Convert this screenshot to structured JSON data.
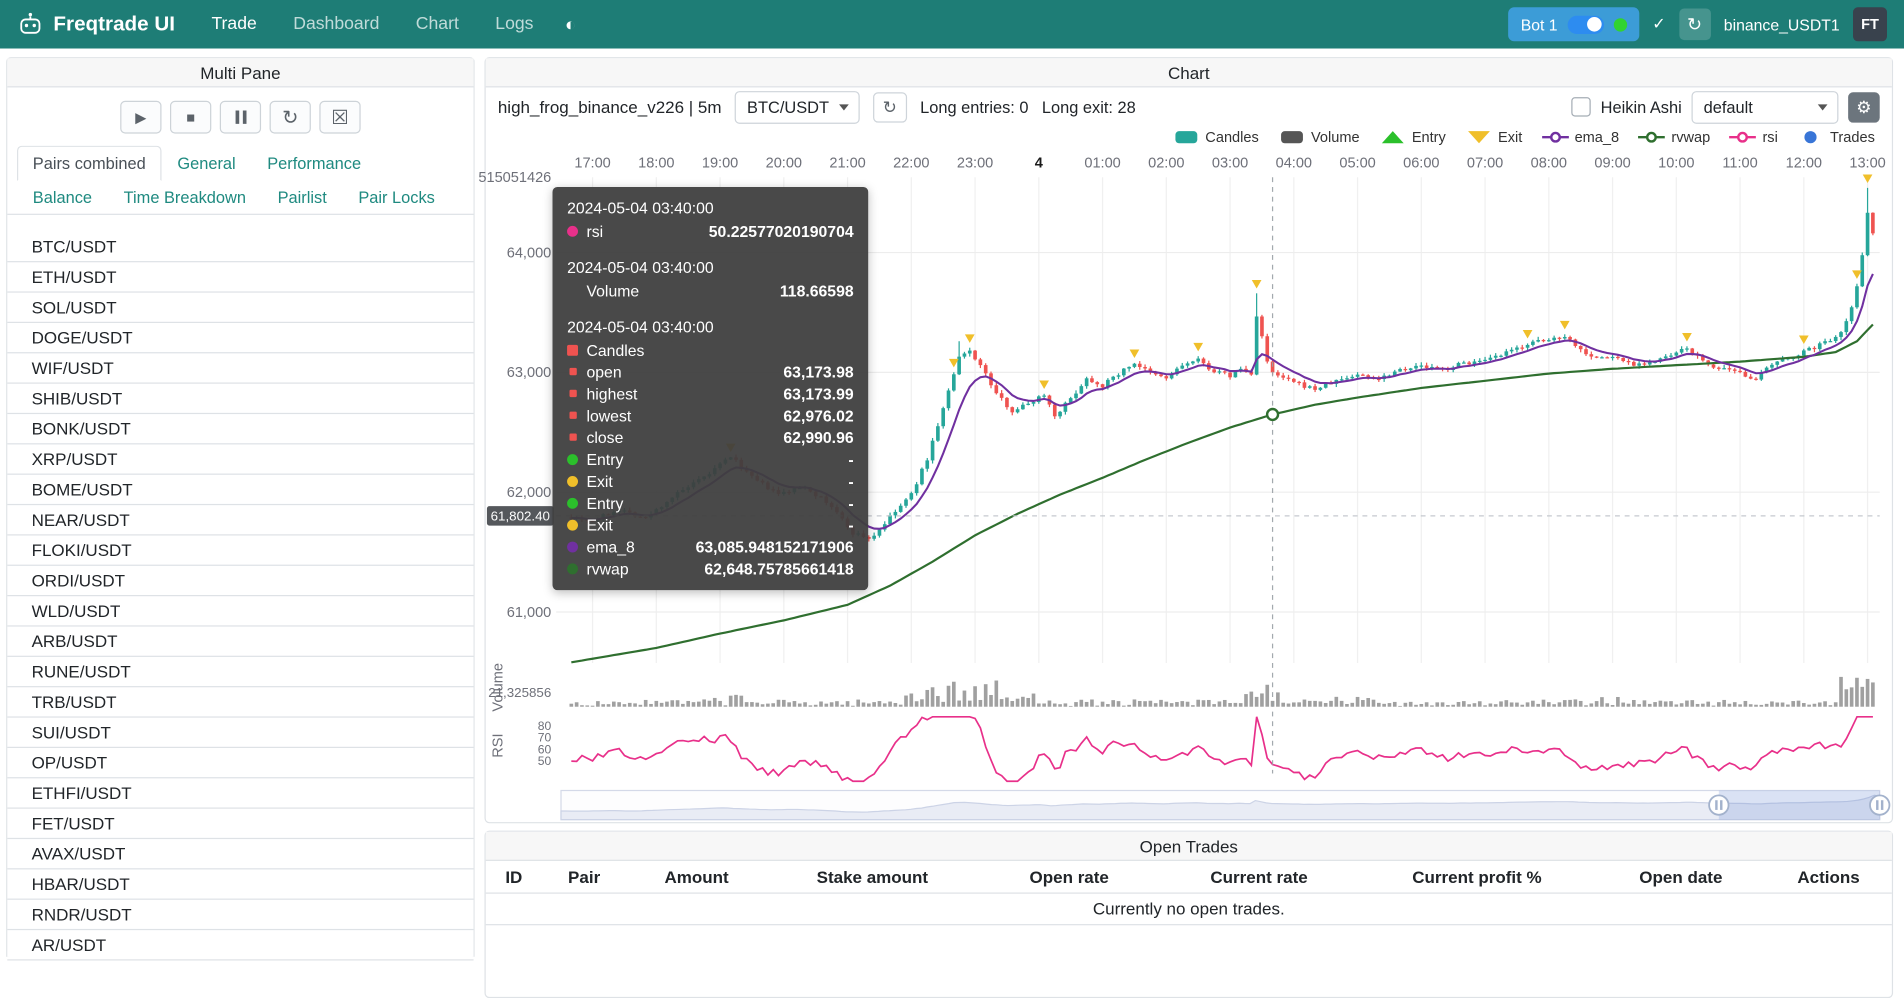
{
  "navbar": {
    "brand": "Freqtrade UI",
    "links": [
      {
        "label": "Trade",
        "active": true
      },
      {
        "label": "Dashboard",
        "active": false
      },
      {
        "label": "Chart",
        "active": false
      },
      {
        "label": "Logs",
        "active": false
      }
    ],
    "theme_icon": "◐",
    "bot_label": "Bot 1",
    "check_icon": "✓",
    "refresh_icon": "↻",
    "bot_name": "binance_USDT1",
    "avatar": "FT",
    "colors": {
      "navbar_bg": "#1e7d76",
      "badge_bg": "#3c9cd7",
      "toggle_on": "#2d8cf0",
      "online_dot": "#31d331"
    }
  },
  "multi_pane": {
    "title": "Multi Pane",
    "controls": [
      {
        "name": "start-bot",
        "glyph": "▶"
      },
      {
        "name": "stop-bot",
        "glyph": "■"
      },
      {
        "name": "pause-bot",
        "glyph": "pause"
      },
      {
        "name": "reload-config",
        "glyph": "↻"
      },
      {
        "name": "cancel-open-orders",
        "glyph": "☒"
      }
    ],
    "tabs": [
      {
        "label": "Pairs combined",
        "active": true
      },
      {
        "label": "General",
        "active": false
      },
      {
        "label": "Performance",
        "active": false
      },
      {
        "label": "Balance",
        "active": false
      },
      {
        "label": "Time Breakdown",
        "active": false
      },
      {
        "label": "Pairlist",
        "active": false
      },
      {
        "label": "Pair Locks",
        "active": false
      }
    ],
    "pairs": [
      "BTC/USDT",
      "ETH/USDT",
      "SOL/USDT",
      "DOGE/USDT",
      "WIF/USDT",
      "SHIB/USDT",
      "BONK/USDT",
      "XRP/USDT",
      "BOME/USDT",
      "NEAR/USDT",
      "FLOKI/USDT",
      "ORDI/USDT",
      "WLD/USDT",
      "ARB/USDT",
      "RUNE/USDT",
      "TRB/USDT",
      "SUI/USDT",
      "OP/USDT",
      "ETHFI/USDT",
      "FET/USDT",
      "AVAX/USDT",
      "HBAR/USDT",
      "RNDR/USDT",
      "AR/USDT"
    ]
  },
  "chart_panel": {
    "title": "Chart",
    "strategy_label": "high_frog_binance_v226 | 5m",
    "pair_select_value": "BTC/USDT",
    "refresh_icon": "↻",
    "long_entries": "Long entries: 0",
    "long_exit": "Long exit: 28",
    "heikin_ashi_label": "Heikin Ashi",
    "plot_config_value": "default",
    "gear_icon": "⚙",
    "legend": [
      {
        "label": "Candles",
        "icon": "rect",
        "color": "#26a69a"
      },
      {
        "label": "Volume",
        "icon": "rect",
        "color": "#555555"
      },
      {
        "label": "Entry",
        "icon": "triangle-up",
        "color": "#2bc02b"
      },
      {
        "label": "Exit",
        "icon": "triangle-down",
        "color": "#f0bf2a"
      },
      {
        "label": "ema_8",
        "icon": "line-circle",
        "color": "#7030a0"
      },
      {
        "label": "rvwap",
        "icon": "line-circle",
        "color": "#2f6f2f"
      },
      {
        "label": "rsi",
        "icon": "line-circle",
        "color": "#e8308a"
      },
      {
        "label": "Trades",
        "icon": "circle",
        "color": "#3875d7"
      }
    ],
    "tooltip": {
      "sections": [
        {
          "header": "2024-05-04 03:40:00",
          "rows": [
            {
              "marker": "circle",
              "color": "#e8308a",
              "label": "rsi",
              "value": "50.22577020190704"
            }
          ]
        },
        {
          "header": "2024-05-04 03:40:00",
          "rows": [
            {
              "marker": "none",
              "color": "",
              "label": "Volume",
              "value": "118.66598"
            }
          ]
        },
        {
          "header": "2024-05-04 03:40:00",
          "rows": [
            {
              "marker": "square",
              "color": "#ef5350",
              "label": "Candles",
              "value": ""
            },
            {
              "marker": "square-sm",
              "color": "#ef5350",
              "label": "open",
              "value": "63,173.98"
            },
            {
              "marker": "square-sm",
              "color": "#ef5350",
              "label": "highest",
              "value": "63,173.99"
            },
            {
              "marker": "square-sm",
              "color": "#ef5350",
              "label": "lowest",
              "value": "62,976.02"
            },
            {
              "marker": "square-sm",
              "color": "#ef5350",
              "label": "close",
              "value": "62,990.96"
            },
            {
              "marker": "circle",
              "color": "#2bc02b",
              "label": "Entry",
              "value": "-"
            },
            {
              "marker": "circle",
              "color": "#f0bf2a",
              "label": "Exit",
              "value": "-"
            },
            {
              "marker": "circle",
              "color": "#2bc02b",
              "label": "Entry",
              "value": "-"
            },
            {
              "marker": "circle",
              "color": "#f0bf2a",
              "label": "Exit",
              "value": "-"
            },
            {
              "marker": "circle",
              "color": "#7030a0",
              "label": "ema_8",
              "value": "63,085.948152171906"
            },
            {
              "marker": "circle",
              "color": "#2f6f2f",
              "label": "rvwap",
              "value": "62,648.75785661418"
            }
          ]
        }
      ]
    }
  },
  "chart_data": {
    "type": "candlestick",
    "pair": "BTC/USDT",
    "timeframe": "5m",
    "seed": 7,
    "t_start": -20,
    "t_end": 1205,
    "x_ticks": [
      {
        "t": 0,
        "label": "17:00"
      },
      {
        "t": 60,
        "label": "18:00"
      },
      {
        "t": 120,
        "label": "19:00"
      },
      {
        "t": 180,
        "label": "20:00"
      },
      {
        "t": 240,
        "label": "21:00"
      },
      {
        "t": 300,
        "label": "22:00"
      },
      {
        "t": 360,
        "label": "23:00"
      },
      {
        "t": 420,
        "label": "4",
        "bold": true
      },
      {
        "t": 480,
        "label": "01:00"
      },
      {
        "t": 540,
        "label": "02:00"
      },
      {
        "t": 600,
        "label": "03:00"
      },
      {
        "t": 660,
        "label": "04:00"
      },
      {
        "t": 720,
        "label": "05:00"
      },
      {
        "t": 780,
        "label": "06:00"
      },
      {
        "t": 840,
        "label": "07:00"
      },
      {
        "t": 900,
        "label": "08:00"
      },
      {
        "t": 960,
        "label": "09:00"
      },
      {
        "t": 1020,
        "label": "10:00"
      },
      {
        "t": 1080,
        "label": "11:00"
      },
      {
        "t": 1140,
        "label": "12:00"
      },
      {
        "t": 1200,
        "label": "13:00"
      }
    ],
    "y_axis": {
      "top_label": "515051426",
      "price_ticks": [
        64000,
        63000,
        62000,
        61000
      ],
      "price_tick_labels": [
        "64,000",
        "63,000",
        "62,000",
        "61,000"
      ],
      "volume_label": "21,325856",
      "volume_axis_label": "Volume",
      "rsi_axis_label": "RSI",
      "rsi_ticks": [
        "80",
        "70",
        "60",
        "50"
      ]
    },
    "ylim": [
      60500,
      64650
    ],
    "price_anchors": [
      [
        -20,
        61800
      ],
      [
        0,
        61760
      ],
      [
        25,
        61860
      ],
      [
        50,
        61780
      ],
      [
        75,
        61960
      ],
      [
        105,
        62120
      ],
      [
        130,
        62300
      ],
      [
        150,
        62120
      ],
      [
        175,
        61980
      ],
      [
        200,
        62050
      ],
      [
        225,
        61880
      ],
      [
        245,
        61660
      ],
      [
        262,
        61610
      ],
      [
        280,
        61790
      ],
      [
        300,
        61980
      ],
      [
        315,
        62280
      ],
      [
        330,
        62700
      ],
      [
        345,
        63120
      ],
      [
        355,
        63180
      ],
      [
        365,
        63060
      ],
      [
        380,
        62820
      ],
      [
        395,
        62680
      ],
      [
        410,
        62740
      ],
      [
        425,
        62820
      ],
      [
        435,
        62640
      ],
      [
        450,
        62780
      ],
      [
        465,
        62950
      ],
      [
        480,
        62890
      ],
      [
        495,
        62990
      ],
      [
        510,
        63080
      ],
      [
        525,
        62990
      ],
      [
        540,
        62950
      ],
      [
        555,
        63060
      ],
      [
        570,
        63100
      ],
      [
        585,
        63010
      ],
      [
        600,
        62970
      ],
      [
        610,
        63030
      ],
      [
        620,
        62980
      ],
      [
        625,
        63480
      ],
      [
        630,
        63300
      ],
      [
        635,
        63080
      ],
      [
        640,
        62991
      ],
      [
        650,
        62950
      ],
      [
        665,
        62900
      ],
      [
        680,
        62860
      ],
      [
        700,
        62930
      ],
      [
        720,
        62980
      ],
      [
        740,
        62950
      ],
      [
        760,
        63030
      ],
      [
        780,
        63050
      ],
      [
        800,
        63020
      ],
      [
        820,
        63080
      ],
      [
        840,
        63090
      ],
      [
        860,
        63160
      ],
      [
        880,
        63240
      ],
      [
        900,
        63270
      ],
      [
        915,
        63310
      ],
      [
        930,
        63190
      ],
      [
        945,
        63120
      ],
      [
        960,
        63130
      ],
      [
        980,
        63070
      ],
      [
        1000,
        63090
      ],
      [
        1015,
        63140
      ],
      [
        1030,
        63200
      ],
      [
        1045,
        63090
      ],
      [
        1060,
        63030
      ],
      [
        1080,
        62990
      ],
      [
        1095,
        62950
      ],
      [
        1110,
        63060
      ],
      [
        1125,
        63120
      ],
      [
        1140,
        63170
      ],
      [
        1155,
        63230
      ],
      [
        1168,
        63290
      ],
      [
        1178,
        63380
      ],
      [
        1186,
        63560
      ],
      [
        1192,
        63800
      ],
      [
        1197,
        64120
      ],
      [
        1201,
        64420
      ],
      [
        1205,
        64150
      ]
    ],
    "wick_boosts": [
      {
        "t": 625,
        "high": 63660
      },
      {
        "t": 1200,
        "high": 64540
      },
      {
        "t": 345,
        "high": 63260
      }
    ],
    "rvwap_anchors": [
      [
        -20,
        60580
      ],
      [
        60,
        60700
      ],
      [
        120,
        60820
      ],
      [
        180,
        60930
      ],
      [
        240,
        61060
      ],
      [
        280,
        61220
      ],
      [
        320,
        61420
      ],
      [
        360,
        61640
      ],
      [
        400,
        61820
      ],
      [
        440,
        61980
      ],
      [
        480,
        62120
      ],
      [
        520,
        62270
      ],
      [
        560,
        62410
      ],
      [
        600,
        62540
      ],
      [
        640,
        62649
      ],
      [
        680,
        62730
      ],
      [
        720,
        62790
      ],
      [
        780,
        62870
      ],
      [
        840,
        62930
      ],
      [
        900,
        62990
      ],
      [
        960,
        63030
      ],
      [
        1020,
        63060
      ],
      [
        1080,
        63090
      ],
      [
        1140,
        63130
      ],
      [
        1170,
        63170
      ],
      [
        1190,
        63260
      ],
      [
        1205,
        63400
      ]
    ],
    "exit_marker_times": [
      130,
      340,
      355,
      425,
      510,
      570,
      625,
      880,
      915,
      1030,
      1140,
      1190,
      1200
    ],
    "volume_spikes": [
      {
        "range": [
          115,
          145
        ],
        "mult": 1.8
      },
      {
        "range": [
          295,
          380
        ],
        "mult": 3.6
      },
      {
        "range": [
          385,
          440
        ],
        "mult": 2.0
      },
      {
        "range": [
          615,
          650
        ],
        "mult": 3.2
      },
      {
        "range": [
          700,
          730
        ],
        "mult": 1.5
      },
      {
        "range": [
          950,
          985
        ],
        "mult": 1.6
      },
      {
        "range": [
          1175,
          1205
        ],
        "mult": 4.2
      }
    ],
    "crosshair": {
      "t": 640,
      "price": 61802.4,
      "price_label": "61,802.40",
      "marker_price": 62648.75785661418
    },
    "window": [
      0.878,
      1.0
    ],
    "colors": {
      "up": "#26a69a",
      "down": "#ef5350",
      "ema": "#7030a0",
      "rvwap": "#2f6f2f",
      "rsi": "#e8308a",
      "volume": "#8f8f8f",
      "exit": "#f0bf2a"
    }
  },
  "open_trades": {
    "title": "Open Trades",
    "columns": [
      "ID",
      "Pair",
      "Amount",
      "Stake amount",
      "Open rate",
      "Current rate",
      "Current profit %",
      "Open date",
      "Actions"
    ],
    "empty_message": "Currently no open trades."
  }
}
